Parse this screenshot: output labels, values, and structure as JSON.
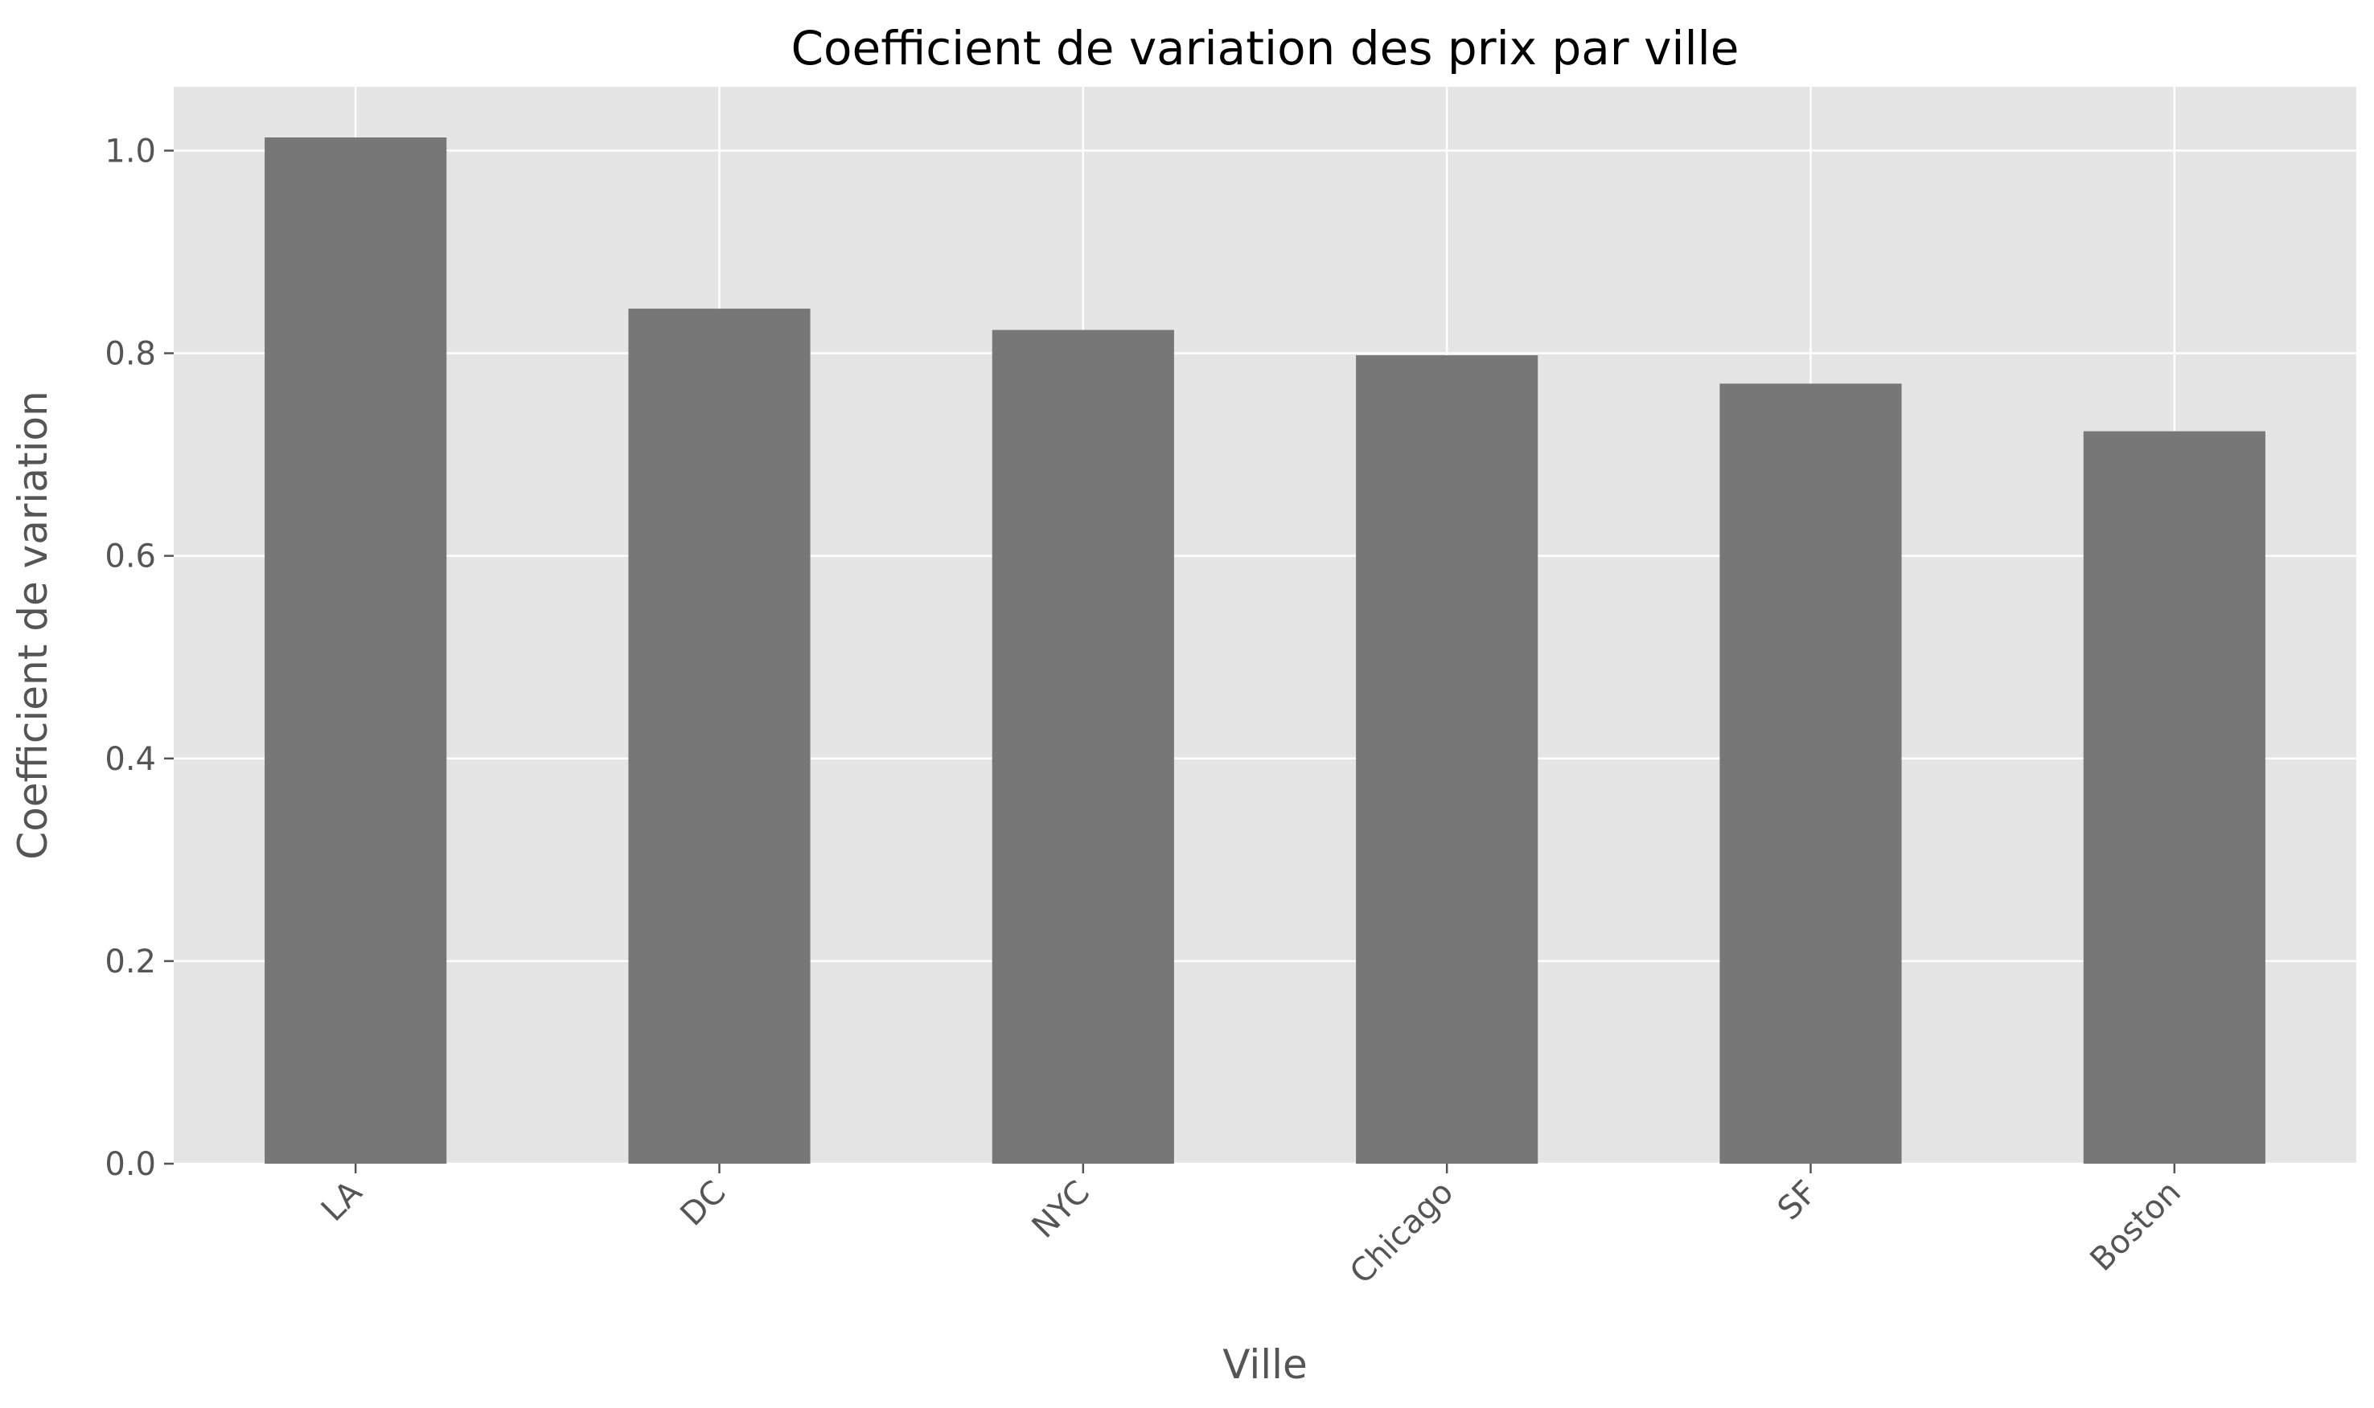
{
  "chart_data": {
    "type": "bar",
    "title": "Coefficient de variation des prix par ville",
    "xlabel": "Ville",
    "ylabel": "Coefficient de variation",
    "categories": [
      "LA",
      "DC",
      "NYC",
      "Chicago",
      "SF",
      "Boston"
    ],
    "values": [
      1.013,
      0.844,
      0.823,
      0.798,
      0.77,
      0.723
    ],
    "ylim": [
      0,
      1.063
    ],
    "yticks": [
      0.0,
      0.2,
      0.4,
      0.6,
      0.8,
      1.0
    ],
    "ytick_labels": [
      "0.0",
      "0.2",
      "0.4",
      "0.6",
      "0.8",
      "1.0"
    ],
    "grid": true,
    "xtick_rotation_deg": 45,
    "colors": {
      "bar": "#777777",
      "plot_background": "#e5e5e5",
      "grid": "#ffffff",
      "tick": "#555555",
      "title": "#000000"
    }
  }
}
